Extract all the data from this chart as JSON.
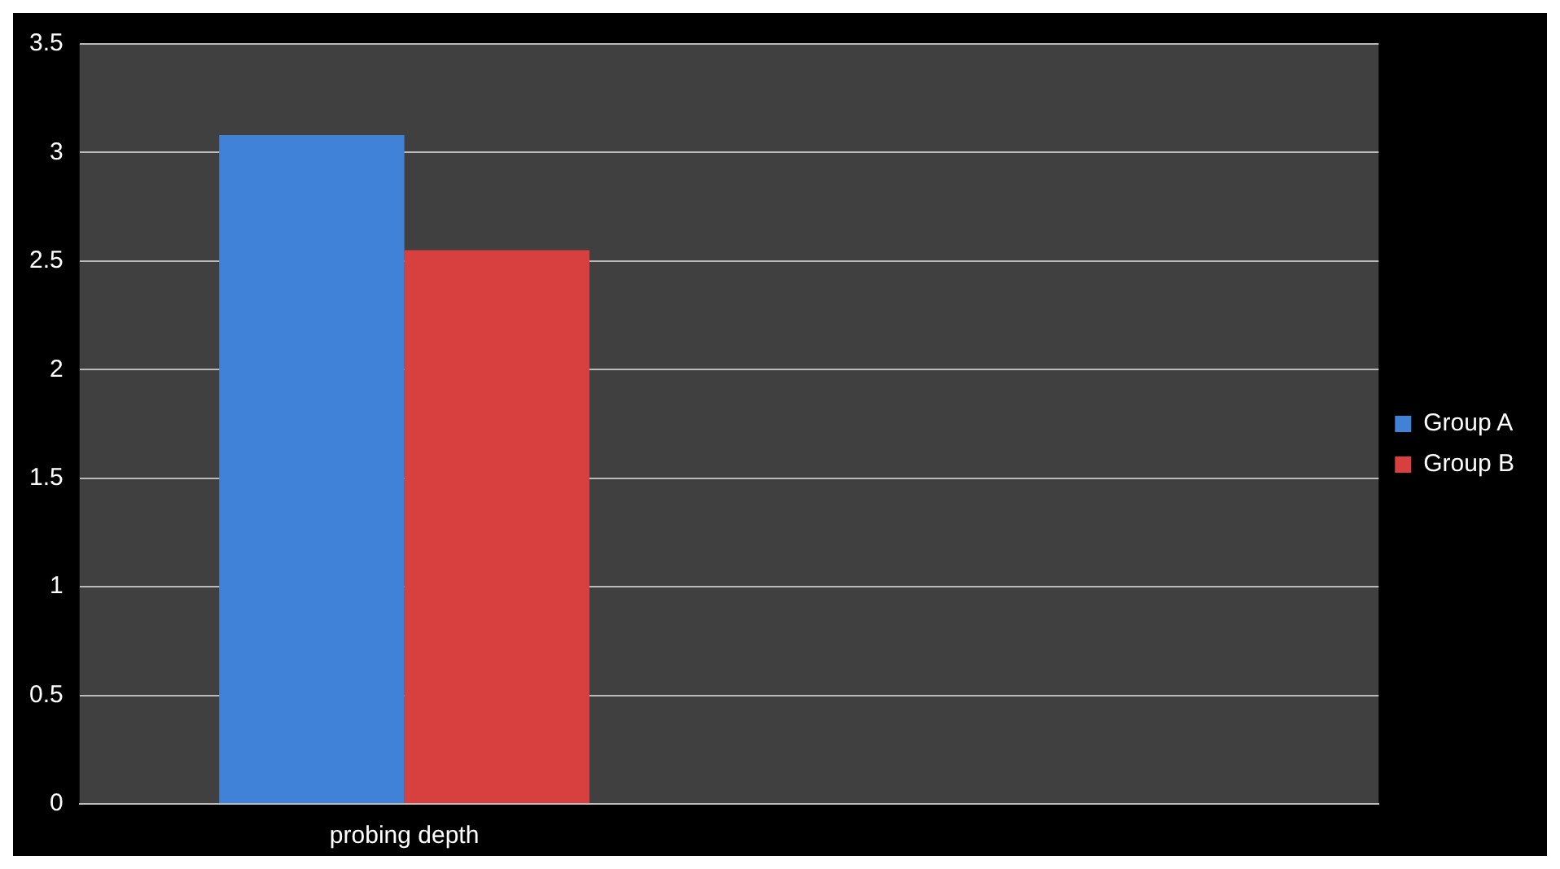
{
  "chart_data": {
    "type": "bar",
    "categories": [
      "probing depth",
      null
    ],
    "series": [
      {
        "name": "Group A",
        "color": "#3f82d8",
        "values": [
          3.08,
          null
        ]
      },
      {
        "name": "Group B",
        "color": "#d84040",
        "values": [
          2.55,
          null
        ]
      }
    ],
    "ylim": [
      0,
      3.5
    ],
    "yticks": [
      0,
      0.5,
      1,
      1.5,
      2,
      2.5,
      3,
      3.5
    ],
    "grid": "y",
    "legend": "right"
  }
}
